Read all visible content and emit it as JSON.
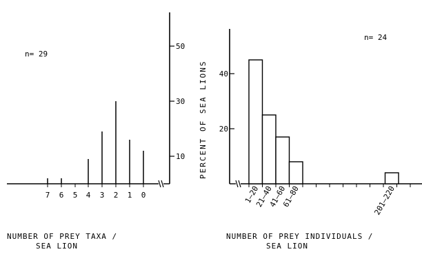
{
  "chart_data": [
    {
      "type": "bar",
      "sample_label": "n= 29",
      "x_categories": [
        "7",
        "6",
        "5",
        "4",
        "3",
        "2",
        "1",
        "0"
      ],
      "values": [
        2,
        2,
        0,
        9,
        19,
        30,
        16,
        12
      ],
      "xlabel_line1": "NUMBER OF PREY TAXA /",
      "xlabel_line2": "SEA LION",
      "ylabel": "",
      "y_ticks": [
        "50",
        "30",
        "10"
      ],
      "y_tick_values": [
        50,
        30,
        10
      ],
      "ylim": [
        0,
        62
      ]
    },
    {
      "type": "bar",
      "sample_label": "n= 24",
      "bins": [
        {
          "label": "1–20",
          "value": 45
        },
        {
          "label": "21–40",
          "value": 25
        },
        {
          "label": "41–60",
          "value": 17
        },
        {
          "label": "61–80",
          "value": 8
        },
        {
          "label": "201–220",
          "value": 4
        }
      ],
      "xlabel_line1": "NUMBER OF PREY INDIVIDUALS /",
      "xlabel_line2": "SEA LION",
      "ylabel": "PERCENT OF SEA LIONS",
      "y_ticks": [
        "40",
        "20"
      ],
      "y_tick_values": [
        40,
        20
      ],
      "ylim": [
        0,
        62
      ]
    }
  ]
}
